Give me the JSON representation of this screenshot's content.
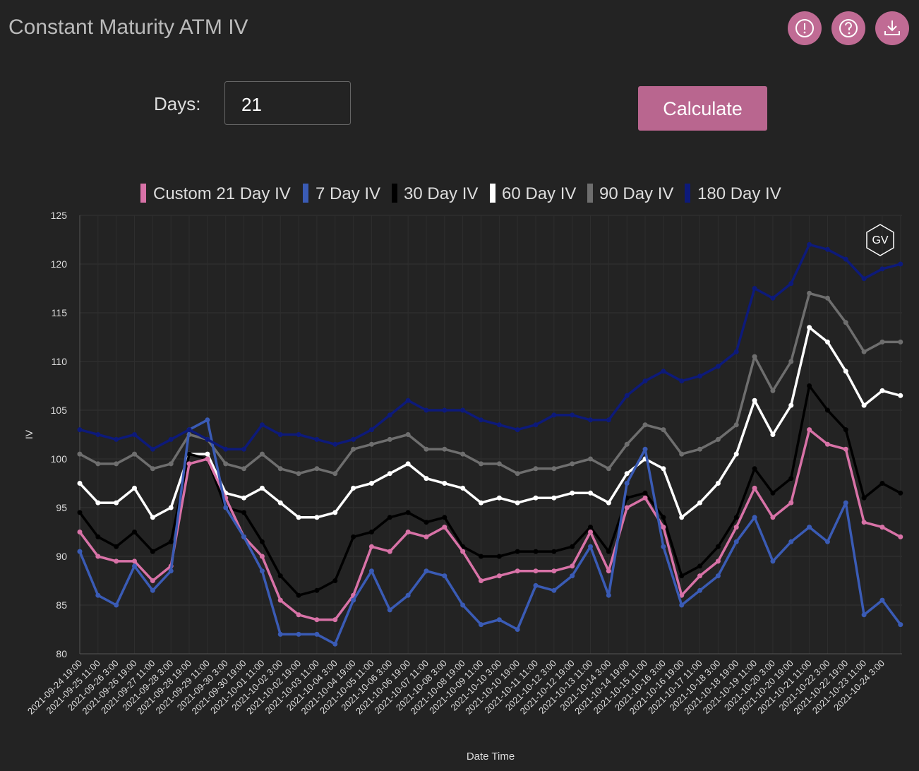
{
  "ui": {
    "title": "Constant Maturity ATM IV",
    "days_label": "Days:",
    "days_value": "21",
    "button": "Calculate"
  },
  "chart_data": {
    "type": "line",
    "x_label": "Date Time",
    "y_label": "IV",
    "watermark": "GV",
    "grid": true,
    "ylim": [
      80,
      125
    ],
    "yticks": [
      80,
      85,
      90,
      95,
      100,
      105,
      110,
      115,
      120,
      125
    ],
    "categories": [
      "2021-09-24 19:00",
      "2021-09-25 11:00",
      "2021-09-26 3:00",
      "2021-09-26 19:00",
      "2021-09-27 11:00",
      "2021-09-28 3:00",
      "2021-09-28 19:00",
      "2021-09-29 11:00",
      "2021-09-30 3:00",
      "2021-09-30 19:00",
      "2021-10-01 11:00",
      "2021-10-02 3:00",
      "2021-10-02 19:00",
      "2021-10-03 11:00",
      "2021-10-04 3:00",
      "2021-10-04 19:00",
      "2021-10-05 11:00",
      "2021-10-06 3:00",
      "2021-10-06 19:00",
      "2021-10-07 11:00",
      "2021-10-08 3:00",
      "2021-10-08 19:00",
      "2021-10-09 11:00",
      "2021-10-10 3:00",
      "2021-10-10 19:00",
      "2021-10-11 11:00",
      "2021-10-12 3:00",
      "2021-10-12 19:00",
      "2021-10-13 11:00",
      "2021-10-14 3:00",
      "2021-10-14 19:00",
      "2021-10-15 11:00",
      "2021-10-16 3:00",
      "2021-10-16 19:00",
      "2021-10-17 11:00",
      "2021-10-18 3:00",
      "2021-10-18 19:00",
      "2021-10-19 11:00",
      "2021-10-20 3:00",
      "2021-10-20 19:00",
      "2021-10-21 11:00",
      "2021-10-22 3:00",
      "2021-10-22 19:00",
      "2021-10-23 11:00",
      "2021-10-24 3:00",
      null
    ],
    "series": [
      {
        "name": "Custom 21 Day IV",
        "color": "#d872a7",
        "values": [
          92.5,
          90,
          89.5,
          89.5,
          87.5,
          89,
          99.5,
          100,
          96,
          92,
          90,
          85.5,
          84,
          83.5,
          83.5,
          86,
          91,
          90.5,
          92.5,
          92,
          93,
          90.5,
          87.5,
          88,
          88.5,
          88.5,
          88.5,
          89,
          92.5,
          88.5,
          95,
          96,
          93,
          86,
          88,
          89.5,
          93,
          97,
          94,
          95.5,
          103,
          101.5,
          101,
          93.5,
          93,
          92
        ]
      },
      {
        "name": "7 Day IV",
        "color": "#3a5bb5",
        "values": [
          90.5,
          86,
          85,
          89,
          86.5,
          88.5,
          103,
          104,
          95,
          92,
          88.5,
          82,
          82,
          82,
          81,
          85.5,
          88.5,
          84.5,
          86,
          88.5,
          88,
          85,
          83,
          83.5,
          82.5,
          87,
          86.5,
          88,
          91,
          86,
          97.5,
          101,
          91,
          85,
          86.5,
          88,
          91.5,
          94,
          89.5,
          91.5,
          93,
          91.5,
          95.5,
          84,
          85.5,
          83
        ]
      },
      {
        "name": "30 Day IV",
        "color": "#000000",
        "values": [
          94.5,
          92,
          91,
          92.5,
          90.5,
          91.5,
          100.5,
          100,
          95,
          94.5,
          91.5,
          88,
          86,
          86.5,
          87.5,
          92,
          92.5,
          94,
          94.5,
          93.5,
          94,
          91,
          90,
          90,
          90.5,
          90.5,
          90.5,
          91,
          93,
          90.5,
          96,
          96.5,
          94,
          88,
          89,
          91,
          94,
          99,
          96.5,
          98,
          107.5,
          105,
          103,
          96,
          97.5,
          96.5
        ]
      },
      {
        "name": "60 Day IV",
        "color": "#ffffff",
        "values": [
          97.5,
          95.5,
          95.5,
          97,
          94,
          95,
          100.5,
          100.5,
          96.5,
          96,
          97,
          95.5,
          94,
          94,
          94.5,
          97,
          97.5,
          98.5,
          99.5,
          98,
          97.5,
          97,
          95.5,
          96,
          95.5,
          96,
          96,
          96.5,
          96.5,
          95.5,
          98.5,
          100,
          99,
          94,
          95.5,
          97.5,
          100.5,
          106,
          102.5,
          105.5,
          113.5,
          112,
          109,
          105.5,
          107,
          106.5
        ]
      },
      {
        "name": "90 Day IV",
        "color": "#6e6e6e",
        "values": [
          100.5,
          99.5,
          99.5,
          100.5,
          99,
          99.5,
          102.5,
          102,
          99.5,
          99,
          100.5,
          99,
          98.5,
          99,
          98.5,
          101,
          101.5,
          102,
          102.5,
          101,
          101,
          100.5,
          99.5,
          99.5,
          98.5,
          99,
          99,
          99.5,
          100,
          99,
          101.5,
          103.5,
          103,
          100.5,
          101,
          102,
          103.5,
          110.5,
          107,
          110,
          117,
          116.5,
          114,
          111,
          112,
          112
        ]
      },
      {
        "name": "180 Day IV",
        "color": "#0d1a7a",
        "values": [
          103,
          102.5,
          102,
          102.5,
          101,
          102,
          103,
          102,
          101,
          101,
          103.5,
          102.5,
          102.5,
          102,
          101.5,
          102,
          103,
          104.5,
          106,
          105,
          105,
          105,
          104,
          103.5,
          103,
          103.5,
          104.5,
          104.5,
          104,
          104,
          106.5,
          108,
          109,
          108,
          108.5,
          109.5,
          111,
          117.5,
          116.5,
          118,
          122,
          121.5,
          120.5,
          118.5,
          119.5,
          120
        ]
      }
    ]
  }
}
